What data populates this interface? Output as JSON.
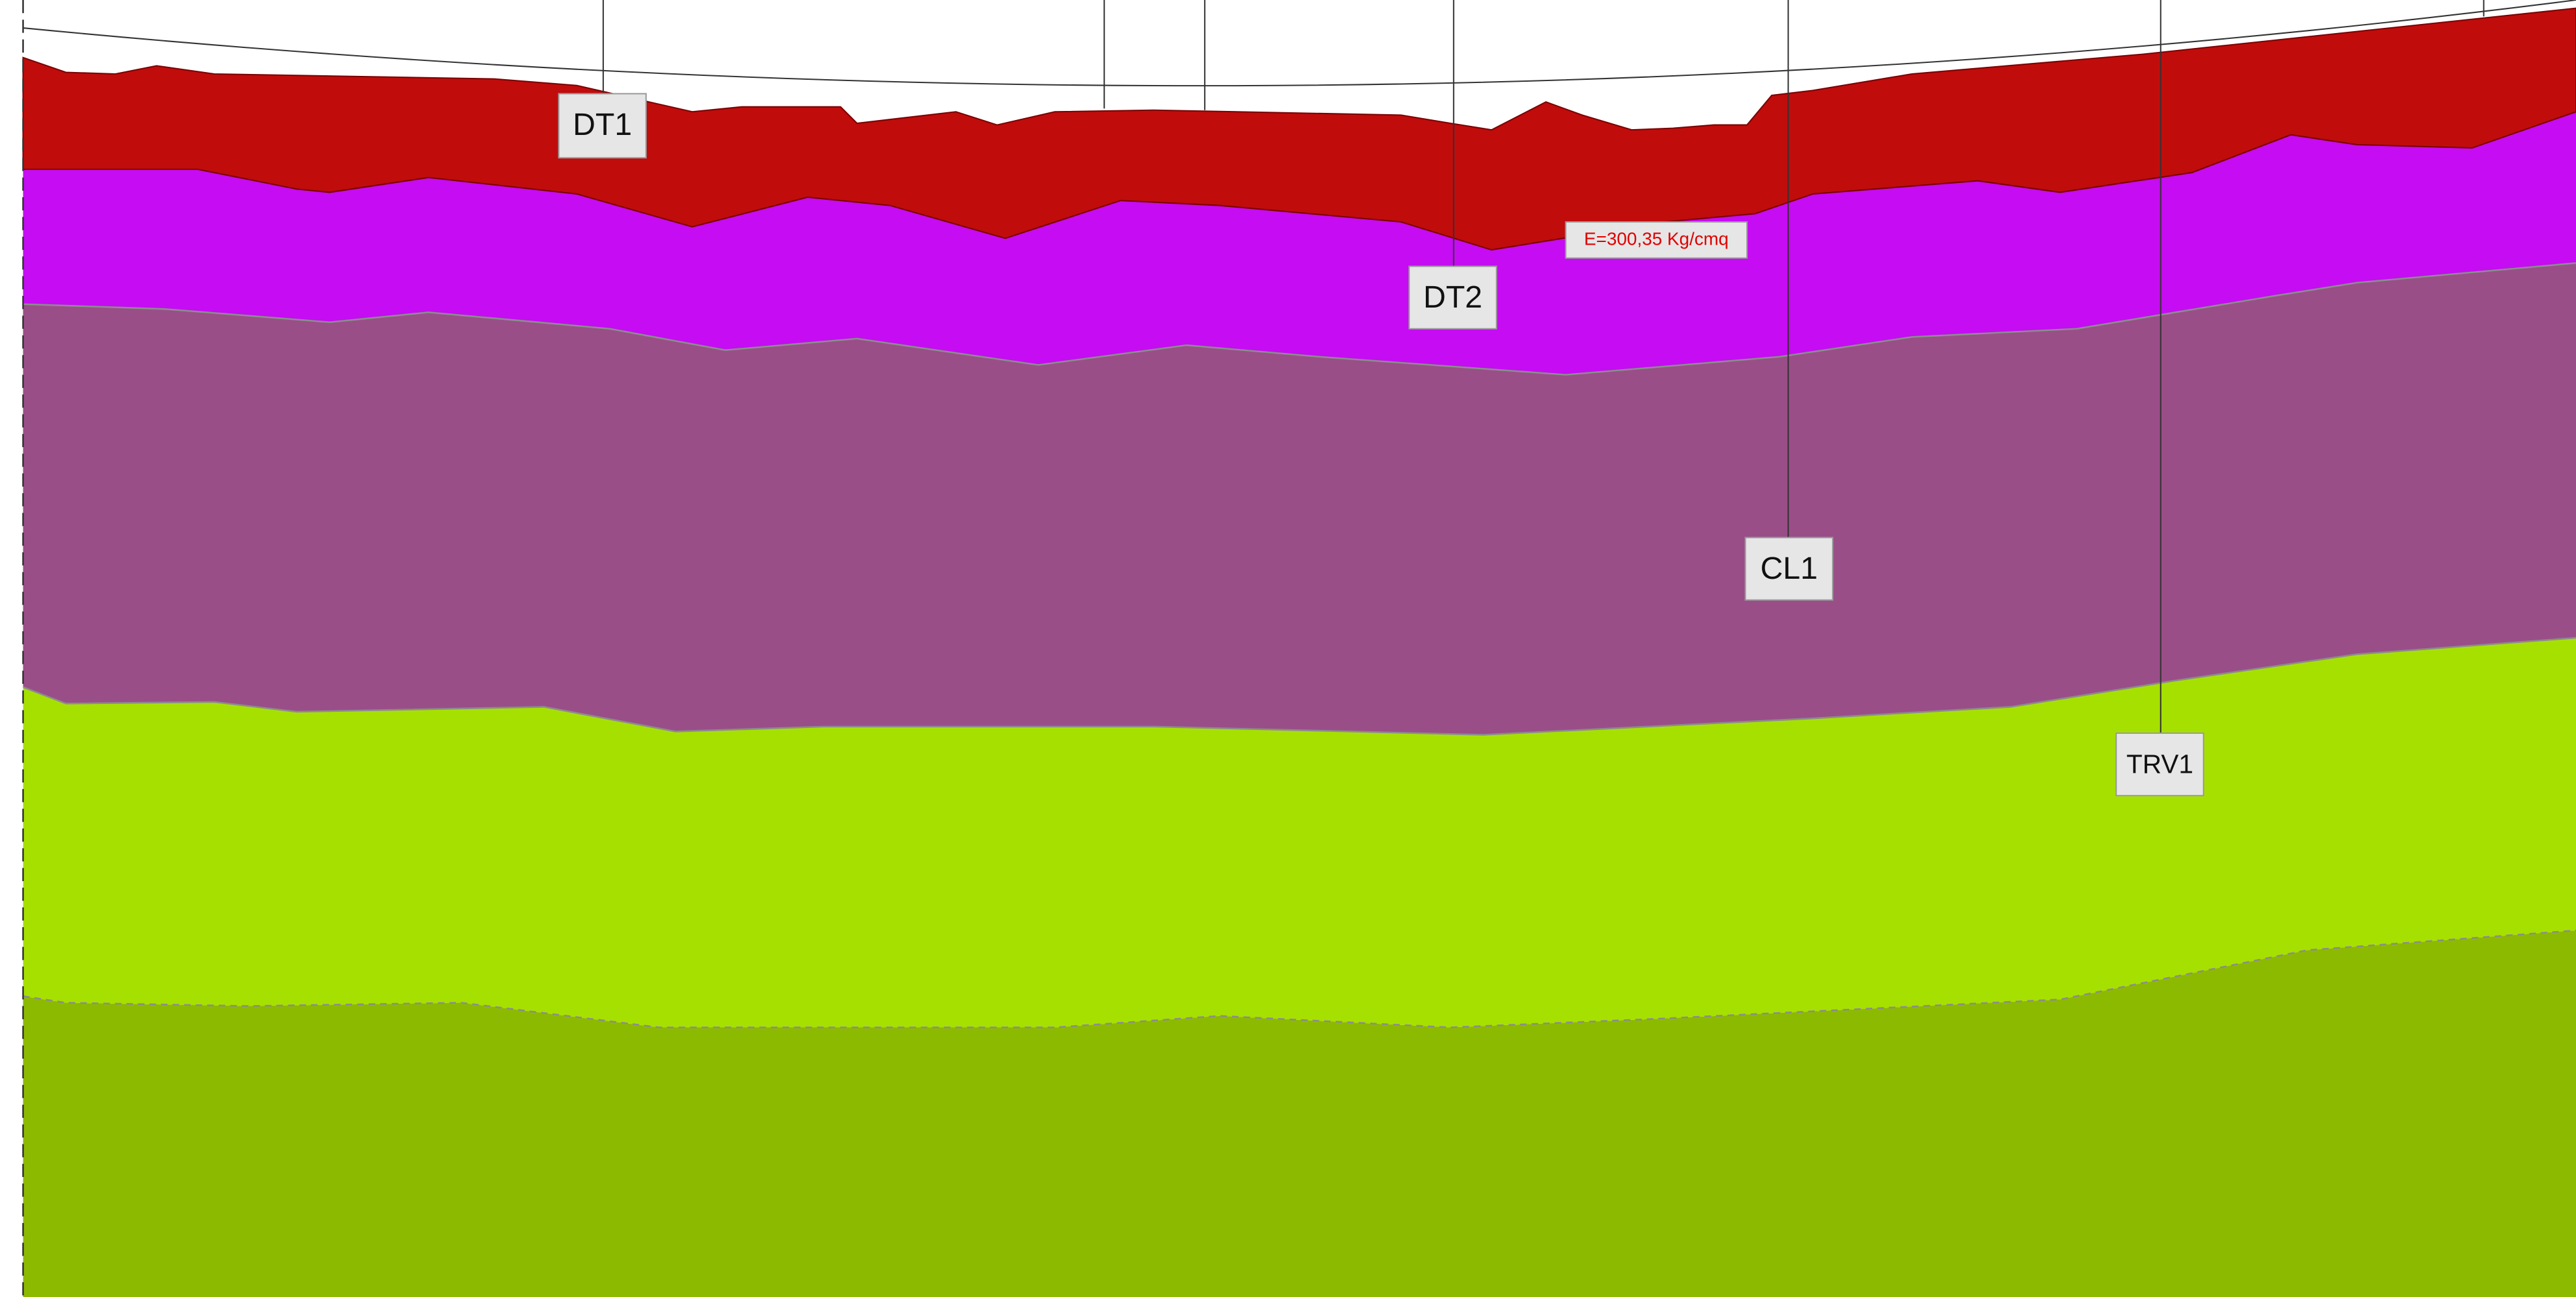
{
  "labels": {
    "dt1": "DT1",
    "dt2": "DT2",
    "cl1": "CL1",
    "trv1": "TRV1",
    "strength": "E=300,35 Kg/cmq"
  }
}
